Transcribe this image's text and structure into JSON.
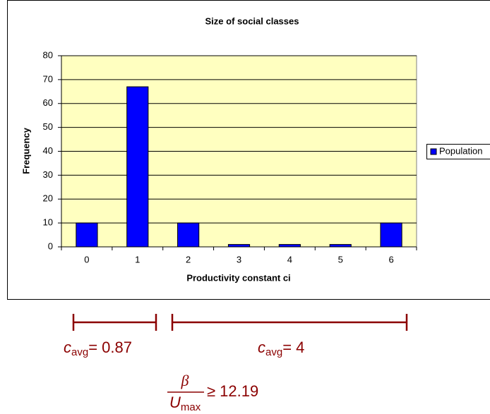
{
  "chart_data": {
    "type": "bar",
    "title": "Size of social classes",
    "x_label": "Productivity constant ci",
    "y_label": "Frequency",
    "categories": [
      "0",
      "1",
      "2",
      "3",
      "4",
      "5",
      "6"
    ],
    "series": [
      {
        "name": "Population",
        "color": "#0000ff",
        "values": [
          10,
          67,
          10,
          1,
          1,
          1,
          10
        ]
      }
    ],
    "ylim": [
      0,
      80
    ],
    "yticks": [
      0,
      10,
      20,
      30,
      40,
      50,
      60,
      70,
      80
    ],
    "grid": true,
    "legend": "right"
  },
  "annotations": [
    {
      "symbol": "c",
      "subscript": "avg",
      "text": "= 0.87"
    },
    {
      "symbol": "c",
      "subscript": "avg",
      "text": "= 4"
    }
  ],
  "formula": {
    "numerator": "β",
    "denominator": "U",
    "denominator_subscript": "max",
    "relation": "≥ 12.19"
  }
}
